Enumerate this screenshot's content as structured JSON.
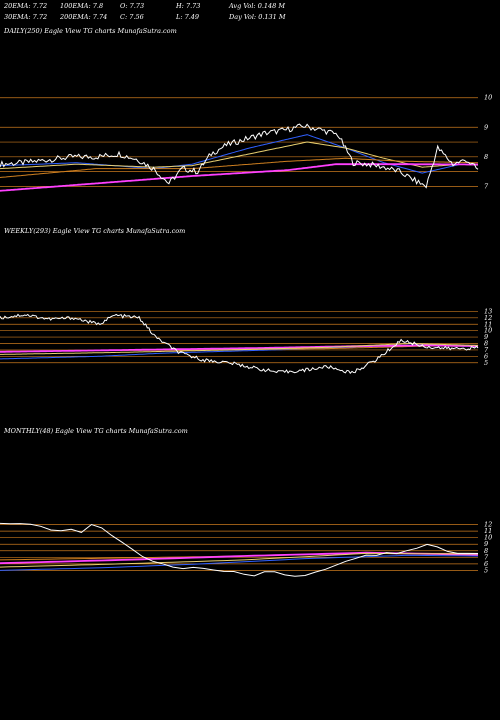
{
  "header": {
    "row1": [
      {
        "label": "20EMA:",
        "value": "7.72"
      },
      {
        "label": "100EMA:",
        "value": "7.8"
      },
      {
        "label": "O:",
        "value": "7.73"
      },
      {
        "label": "H:",
        "value": "7.73"
      },
      {
        "label": "Avg Vol:",
        "value": "0.148 M"
      }
    ],
    "row2": [
      {
        "label": "30EMA:",
        "value": "7.72"
      },
      {
        "label": "200EMA:",
        "value": "7.74"
      },
      {
        "label": "C:",
        "value": "7.56"
      },
      {
        "label": "L:",
        "value": "7.49"
      },
      {
        "label": "Day Vol:",
        "value": "0.131 M"
      }
    ]
  },
  "colors": {
    "background": "#000000",
    "price": "#ffffff",
    "ema_blue": "#3060ff",
    "ema_pink": "#ff40ff",
    "ema_orange": "#d08020",
    "ema_gold": "#e8d070",
    "grid": "#c8781e"
  },
  "chart_data": [
    {
      "type": "line",
      "label": "DAILY(250) Eagle   View  TG charts MunafaSutra.com",
      "ylim": [
        6.2,
        10.6
      ],
      "ticks": [
        "10",
        "9",
        "8",
        "7"
      ],
      "tick_values": [
        10,
        9,
        8,
        7
      ],
      "gridlines": [
        10,
        9,
        8.5,
        8,
        7.5,
        7
      ],
      "x_count": 250,
      "price_points": [
        [
          0,
          7.75
        ],
        [
          12,
          7.8
        ],
        [
          25,
          7.9
        ],
        [
          38,
          8.0
        ],
        [
          50,
          8.0
        ],
        [
          62,
          8.1
        ],
        [
          72,
          7.9
        ],
        [
          80,
          7.6
        ],
        [
          88,
          7.1
        ],
        [
          95,
          7.6
        ],
        [
          103,
          7.5
        ],
        [
          110,
          8.1
        ],
        [
          118,
          8.4
        ],
        [
          128,
          8.6
        ],
        [
          138,
          8.8
        ],
        [
          148,
          8.9
        ],
        [
          158,
          9.05
        ],
        [
          168,
          8.9
        ],
        [
          176,
          8.75
        ],
        [
          184,
          7.8
        ],
        [
          192,
          7.75
        ],
        [
          200,
          7.65
        ],
        [
          208,
          7.5
        ],
        [
          216,
          7.2
        ],
        [
          222,
          7.0
        ],
        [
          228,
          8.3
        ],
        [
          236,
          7.75
        ],
        [
          243,
          7.9
        ],
        [
          249,
          7.56
        ]
      ],
      "series": [
        {
          "color": "ema_blue",
          "points": [
            [
              0,
              7.7
            ],
            [
              40,
              7.8
            ],
            [
              80,
              7.6
            ],
            [
              100,
              7.75
            ],
            [
              130,
              8.3
            ],
            [
              160,
              8.75
            ],
            [
              180,
              8.3
            ],
            [
              200,
              7.8
            ],
            [
              220,
              7.45
            ],
            [
              240,
              7.75
            ],
            [
              249,
              7.72
            ]
          ]
        },
        {
          "color": "ema_gold",
          "points": [
            [
              0,
              7.6
            ],
            [
              40,
              7.75
            ],
            [
              80,
              7.65
            ],
            [
              100,
              7.7
            ],
            [
              130,
              8.1
            ],
            [
              160,
              8.5
            ],
            [
              180,
              8.3
            ],
            [
              200,
              7.95
            ],
            [
              220,
              7.65
            ],
            [
              240,
              7.75
            ],
            [
              249,
              7.72
            ]
          ]
        },
        {
          "color": "ema_orange",
          "points": [
            [
              0,
              7.3
            ],
            [
              50,
              7.6
            ],
            [
              100,
              7.6
            ],
            [
              150,
              7.85
            ],
            [
              180,
              7.95
            ],
            [
              210,
              7.85
            ],
            [
              249,
              7.8
            ]
          ]
        },
        {
          "color": "ema_pink",
          "points": [
            [
              0,
              6.85
            ],
            [
              50,
              7.1
            ],
            [
              100,
              7.35
            ],
            [
              150,
              7.55
            ],
            [
              175,
              7.75
            ],
            [
              210,
              7.75
            ],
            [
              249,
              7.74
            ]
          ]
        }
      ]
    },
    {
      "type": "line",
      "label": "WEEKLY(293) Eagle   View  TG charts MunafaSutra.com",
      "ylim": [
        2,
        14
      ],
      "ticks": [
        "13",
        "12",
        "11",
        "10",
        "9",
        "8",
        "7",
        "6",
        "5"
      ],
      "tick_values": [
        13,
        12,
        11,
        10,
        9,
        8,
        7,
        6,
        5
      ],
      "gridlines": [
        13,
        12,
        11,
        10,
        9,
        8,
        7,
        6,
        5
      ],
      "x_count": 293,
      "price_points": [
        [
          0,
          12
        ],
        [
          15,
          12.5
        ],
        [
          30,
          11.8
        ],
        [
          45,
          12.0
        ],
        [
          60,
          11.0
        ],
        [
          70,
          12.4
        ],
        [
          85,
          12.0
        ],
        [
          95,
          9.0
        ],
        [
          110,
          6.5
        ],
        [
          125,
          5.4
        ],
        [
          140,
          5.0
        ],
        [
          155,
          4.2
        ],
        [
          170,
          3.5
        ],
        [
          185,
          3.8
        ],
        [
          200,
          4.4
        ],
        [
          215,
          3.4
        ],
        [
          230,
          5.5
        ],
        [
          245,
          8.5
        ],
        [
          260,
          7.5
        ],
        [
          275,
          7.2
        ],
        [
          292,
          7.3
        ]
      ],
      "series": [
        {
          "color": "ema_blue",
          "points": [
            [
              0,
              5.6
            ],
            [
              60,
              6.0
            ],
            [
              100,
              6.5
            ],
            [
              140,
              6.8
            ],
            [
              180,
              7.1
            ],
            [
              220,
              7.5
            ],
            [
              260,
              7.8
            ],
            [
              292,
              7.5
            ]
          ]
        },
        {
          "color": "ema_orange",
          "points": [
            [
              0,
              6.8
            ],
            [
              60,
              6.9
            ],
            [
              120,
              7.0
            ],
            [
              200,
              7.2
            ],
            [
              260,
              7.6
            ],
            [
              292,
              7.7
            ]
          ]
        },
        {
          "color": "ema_pink",
          "points": [
            [
              0,
              6.7
            ],
            [
              80,
              7.0
            ],
            [
              160,
              7.3
            ],
            [
              220,
              7.6
            ],
            [
              260,
              7.7
            ],
            [
              292,
              7.6
            ]
          ]
        },
        {
          "color": "ema_gold",
          "points": [
            [
              0,
              6.3
            ],
            [
              70,
              6.6
            ],
            [
              140,
              7.0
            ],
            [
              200,
              7.4
            ],
            [
              250,
              8.0
            ],
            [
              292,
              7.7
            ]
          ]
        }
      ]
    },
    {
      "type": "line",
      "label": "MONTHLY(48) Eagle   View  TG charts MunafaSutra.com",
      "ylim": [
        2,
        15
      ],
      "ticks": [
        "12",
        "11",
        "10",
        "9",
        "8",
        "7",
        "6",
        "5"
      ],
      "tick_values": [
        12,
        11,
        10,
        9,
        8,
        7,
        6,
        5
      ],
      "gridlines": [
        12,
        11,
        10,
        9,
        8,
        7,
        6,
        5
      ],
      "x_count": 48,
      "price_points": [
        [
          0,
          12
        ],
        [
          3,
          11.9
        ],
        [
          6,
          11.2
        ],
        [
          8,
          10.8
        ],
        [
          9,
          12.3
        ],
        [
          11,
          10.5
        ],
        [
          13,
          8.0
        ],
        [
          16,
          5.8
        ],
        [
          19,
          5.2
        ],
        [
          22,
          4.8
        ],
        [
          25,
          4.3
        ],
        [
          27,
          5.0
        ],
        [
          29,
          4.2
        ],
        [
          31,
          4.5
        ],
        [
          33,
          5.8
        ],
        [
          36,
          7.3
        ],
        [
          39,
          7.8
        ],
        [
          42,
          8.8
        ],
        [
          45,
          7.5
        ],
        [
          47,
          7.4
        ]
      ],
      "series": [
        {
          "color": "ema_blue",
          "points": [
            [
              0,
              5.0
            ],
            [
              10,
              5.4
            ],
            [
              20,
              6.0
            ],
            [
              30,
              6.8
            ],
            [
              40,
              7.3
            ],
            [
              47,
              7.2
            ]
          ]
        },
        {
          "color": "ema_orange",
          "points": [
            [
              0,
              6.6
            ],
            [
              12,
              6.9
            ],
            [
              24,
              7.2
            ],
            [
              36,
              7.6
            ],
            [
              47,
              7.6
            ]
          ]
        },
        {
          "color": "ema_pink",
          "points": [
            [
              0,
              6.1
            ],
            [
              12,
              6.6
            ],
            [
              24,
              7.2
            ],
            [
              36,
              7.7
            ],
            [
              47,
              7.4
            ]
          ]
        },
        {
          "color": "ema_gold",
          "points": [
            [
              0,
              5.5
            ],
            [
              12,
              6.0
            ],
            [
              24,
              6.6
            ],
            [
              36,
              7.6
            ],
            [
              47,
              7.5
            ]
          ]
        }
      ]
    }
  ]
}
